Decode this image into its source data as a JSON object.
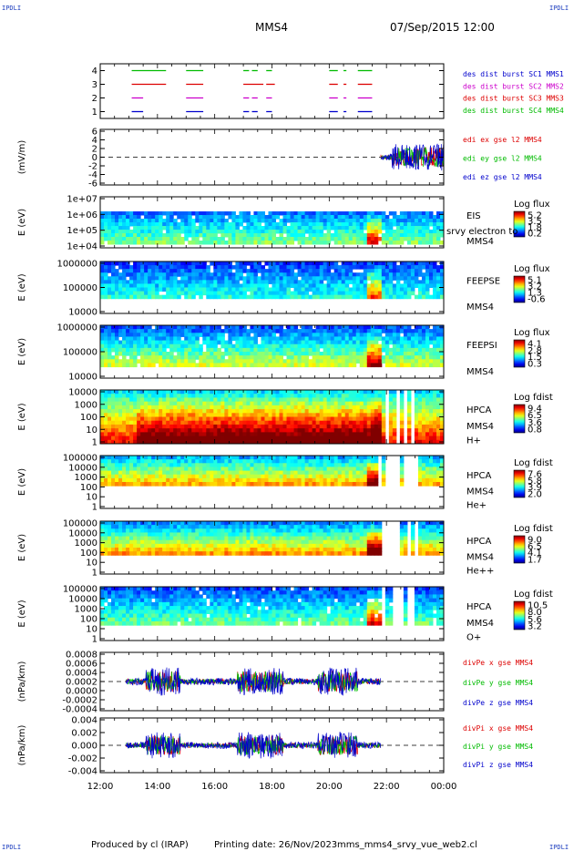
{
  "header": {
    "mission": "MMS4",
    "datetime": "07/Sep/2015 12:00",
    "corner_label": "IPDLI"
  },
  "footer": {
    "produced_by": "Produced by cl (IRAP)",
    "printing_date": "Printing date: 26/Nov/2023",
    "file": "mms_mms4_srvy_vue_web2.cl"
  },
  "time_axis": {
    "ticks": [
      "12:00",
      "14:00",
      "16:00",
      "18:00",
      "20:00",
      "22:00",
      "00:00"
    ],
    "range_hours": [
      12,
      24
    ]
  },
  "chart_data": [
    {
      "type": "scatter",
      "id": "burst",
      "ylim": [
        0.5,
        4.5
      ],
      "yticks": [
        "1",
        "2",
        "3",
        "4"
      ],
      "series": [
        {
          "name": "des dist burst SC1 MMS1",
          "color": "#0000cc",
          "level": 1,
          "intervals": [
            [
              13.1,
              13.5
            ],
            [
              15.0,
              15.6
            ],
            [
              17.0,
              17.2
            ],
            [
              17.3,
              17.5
            ],
            [
              17.8,
              18.0
            ],
            [
              20.0,
              20.3
            ],
            [
              20.5,
              20.6
            ],
            [
              21.0,
              21.5
            ]
          ]
        },
        {
          "name": "des dist burst SC2 MMS2",
          "color": "#cc00cc",
          "level": 2,
          "intervals": [
            [
              13.1,
              13.5
            ],
            [
              15.0,
              15.6
            ],
            [
              17.0,
              17.2
            ],
            [
              17.3,
              17.5
            ],
            [
              17.8,
              18.0
            ],
            [
              20.0,
              20.3
            ],
            [
              20.5,
              20.6
            ],
            [
              21.0,
              21.5
            ]
          ]
        },
        {
          "name": "des dist burst SC3 MMS3",
          "color": "#dd0000",
          "level": 3,
          "intervals": [
            [
              13.1,
              14.3
            ],
            [
              15.0,
              15.6
            ],
            [
              17.0,
              17.7
            ],
            [
              17.8,
              18.1
            ],
            [
              20.0,
              20.3
            ],
            [
              20.5,
              20.6
            ],
            [
              21.0,
              21.5
            ]
          ]
        },
        {
          "name": "des dist burst SC4 MMS4",
          "color": "#00bb00",
          "level": 4,
          "intervals": [
            [
              13.1,
              14.3
            ],
            [
              15.0,
              15.6
            ],
            [
              17.0,
              17.2
            ],
            [
              17.3,
              17.5
            ],
            [
              17.8,
              18.0
            ],
            [
              20.0,
              20.3
            ],
            [
              20.5,
              20.6
            ],
            [
              21.0,
              21.5
            ]
          ]
        }
      ]
    },
    {
      "type": "line",
      "id": "edi",
      "ylabel": "(mV/m)",
      "ylim": [
        -6,
        6
      ],
      "yticks": [
        "6",
        "4",
        "2",
        "0",
        "-2",
        "-4",
        "-6"
      ],
      "series": [
        {
          "name": "edi ex gse l2 MMS4",
          "color": "#dd0000"
        },
        {
          "name": "edi ey gse l2 MMS4",
          "color": "#00bb00"
        },
        {
          "name": "edi ez gse l2 MMS4",
          "color": "#0000cc"
        }
      ],
      "data_start_hour": 21.8
    },
    {
      "type": "heatmap",
      "id": "eis",
      "ylabel": "E (eV)",
      "yticks": [
        "1e+07",
        "1e+06",
        "1e+05",
        "1e+04"
      ],
      "labels": [
        "EIS",
        "MMS4"
      ],
      "overlap_text": "srvy electron to",
      "cbar_title": "Log flux",
      "cbar_ticks": [
        "5.2",
        "3.5",
        "1.8",
        "0.2"
      ]
    },
    {
      "type": "heatmap",
      "id": "feepse",
      "ylabel": "E (eV)",
      "yticks": [
        "1000000",
        "100000",
        "10000"
      ],
      "labels": [
        "FEEPSE",
        "MMS4"
      ],
      "cbar_title": "Log flux",
      "cbar_ticks": [
        "5.1",
        "3.2",
        "1.3",
        "-0.6"
      ]
    },
    {
      "type": "heatmap",
      "id": "feepsi",
      "ylabel": "E (eV)",
      "yticks": [
        "1000000",
        "100000",
        "10000"
      ],
      "labels": [
        "FEEPSI",
        "MMS4"
      ],
      "cbar_title": "Log flux",
      "cbar_ticks": [
        "4.1",
        "2.8",
        "1.5",
        "0.3"
      ]
    },
    {
      "type": "heatmap",
      "id": "hpca_h",
      "ylabel": "E (eV)",
      "yticks": [
        "10000",
        "1000",
        "100",
        "10",
        "1"
      ],
      "labels": [
        "HPCA",
        "MMS4",
        "H+"
      ],
      "cbar_title": "Log fdist",
      "cbar_ticks": [
        "9.4",
        "6.5",
        "3.6",
        "0.8"
      ]
    },
    {
      "type": "heatmap",
      "id": "hpca_he",
      "ylabel": "E (eV)",
      "yticks": [
        "100000",
        "10000",
        "1000",
        "100",
        "10",
        "1"
      ],
      "labels": [
        "HPCA",
        "MMS4",
        "He+"
      ],
      "cbar_title": "Log fdist",
      "cbar_ticks": [
        "7.6",
        "5.8",
        "3.9",
        "2.0"
      ]
    },
    {
      "type": "heatmap",
      "id": "hpca_hepp",
      "ylabel": "E (eV)",
      "yticks": [
        "100000",
        "10000",
        "1000",
        "100",
        "10",
        "1"
      ],
      "labels": [
        "HPCA",
        "MMS4",
        "He++"
      ],
      "cbar_title": "Log fdist",
      "cbar_ticks": [
        "9.0",
        "6.5",
        "4.1",
        "1.7"
      ]
    },
    {
      "type": "heatmap",
      "id": "hpca_o",
      "ylabel": "E (eV)",
      "yticks": [
        "100000",
        "10000",
        "1000",
        "100",
        "10",
        "1"
      ],
      "labels": [
        "HPCA",
        "MMS4",
        "O+"
      ],
      "cbar_title": "Log fdist",
      "cbar_ticks": [
        "10.5",
        "8.0",
        "5.6",
        "3.2"
      ]
    },
    {
      "type": "line",
      "id": "divpe",
      "ylabel": "(nPa/km)",
      "ylim": [
        -0.005,
        0.009
      ],
      "yticks": [
        "0.0008",
        "0.0006",
        "0.0004",
        "0.0002",
        "0.0000",
        "-0.0002",
        "-0.0004"
      ],
      "series": [
        {
          "name": "divPe x gse MMS4",
          "color": "#dd0000"
        },
        {
          "name": "divPe y gse MMS4",
          "color": "#00bb00"
        },
        {
          "name": "divPe z gse MMS4",
          "color": "#0000cc"
        }
      ],
      "data_end_hour": 21.8
    },
    {
      "type": "line",
      "id": "divpi",
      "ylabel": "(nPa/km)",
      "ylim": [
        -0.004,
        0.004
      ],
      "yticks": [
        "0.004",
        "0.002",
        "0.000",
        "-0.002",
        "-0.004"
      ],
      "series": [
        {
          "name": "divPi x gse MMS4",
          "color": "#dd0000"
        },
        {
          "name": "divPi y gse MMS4",
          "color": "#00bb00"
        },
        {
          "name": "divPi z gse MMS4",
          "color": "#0000cc"
        }
      ],
      "data_end_hour": 21.8
    }
  ]
}
